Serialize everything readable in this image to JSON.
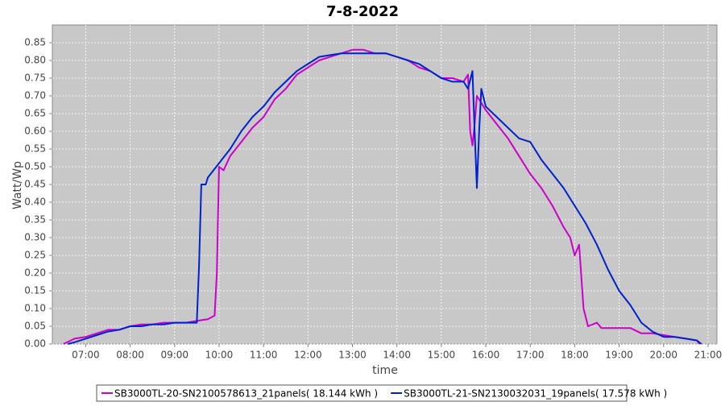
{
  "chart_data": {
    "type": "line",
    "title": "7-8-2022",
    "x_label": "time",
    "y_label": "Watt/Wp",
    "xlim": [
      6.25,
      21.2
    ],
    "ylim": [
      0,
      0.9
    ],
    "grid": true,
    "legend": "bottom",
    "xticks": [
      {
        "value": 7,
        "label": "07:00"
      },
      {
        "value": 8,
        "label": "08:00"
      },
      {
        "value": 9,
        "label": "09:00"
      },
      {
        "value": 10,
        "label": "10:00"
      },
      {
        "value": 11,
        "label": "11:00"
      },
      {
        "value": 12,
        "label": "12:00"
      },
      {
        "value": 13,
        "label": "13:00"
      },
      {
        "value": 14,
        "label": "14:00"
      },
      {
        "value": 15,
        "label": "15:00"
      },
      {
        "value": 16,
        "label": "16:00"
      },
      {
        "value": 17,
        "label": "17:00"
      },
      {
        "value": 18,
        "label": "18:00"
      },
      {
        "value": 19,
        "label": "19:00"
      },
      {
        "value": 20,
        "label": "20:00"
      },
      {
        "value": 21,
        "label": "21:00"
      }
    ],
    "yticks": [
      {
        "value": 0,
        "label": "0.00"
      },
      {
        "value": 0.05,
        "label": "0.05"
      },
      {
        "value": 0.1,
        "label": "0.10"
      },
      {
        "value": 0.15,
        "label": "0.15"
      },
      {
        "value": 0.2,
        "label": "0.20"
      },
      {
        "value": 0.25,
        "label": "0.25"
      },
      {
        "value": 0.3,
        "label": "0.30"
      },
      {
        "value": 0.35,
        "label": "0.35"
      },
      {
        "value": 0.4,
        "label": "0.40"
      },
      {
        "value": 0.45,
        "label": "0.45"
      },
      {
        "value": 0.5,
        "label": "0.50"
      },
      {
        "value": 0.55,
        "label": "0.55"
      },
      {
        "value": 0.6,
        "label": "0.60"
      },
      {
        "value": 0.65,
        "label": "0.65"
      },
      {
        "value": 0.7,
        "label": "0.70"
      },
      {
        "value": 0.75,
        "label": "0.75"
      },
      {
        "value": 0.8,
        "label": "0.80"
      },
      {
        "value": 0.85,
        "label": "0.85"
      }
    ],
    "series": [
      {
        "name": "SB3000TL-20-SN2100578613_21panels( 18.144 kWh )",
        "color": "#cc00cc",
        "x": [
          6.5,
          6.75,
          7.0,
          7.25,
          7.5,
          7.75,
          8.0,
          8.25,
          8.5,
          8.75,
          9.0,
          9.25,
          9.5,
          9.75,
          9.9,
          9.95,
          10.0,
          10.1,
          10.25,
          10.5,
          10.75,
          11.0,
          11.25,
          11.5,
          11.75,
          12.0,
          12.25,
          12.5,
          12.75,
          13.0,
          13.25,
          13.5,
          13.75,
          14.0,
          14.25,
          14.5,
          14.75,
          15.0,
          15.25,
          15.5,
          15.6,
          15.65,
          15.7,
          15.75,
          15.8,
          15.9,
          16.0,
          16.25,
          16.5,
          16.75,
          17.0,
          17.25,
          17.5,
          17.75,
          17.9,
          18.0,
          18.1,
          18.2,
          18.3,
          18.5,
          18.6,
          19.0,
          19.25,
          19.5,
          19.75,
          20.0,
          20.25,
          20.5,
          20.75,
          20.8
        ],
        "values": [
          0,
          0.015,
          0.02,
          0.03,
          0.04,
          0.04,
          0.05,
          0.055,
          0.055,
          0.06,
          0.06,
          0.06,
          0.065,
          0.07,
          0.08,
          0.2,
          0.5,
          0.49,
          0.53,
          0.57,
          0.61,
          0.64,
          0.69,
          0.72,
          0.76,
          0.78,
          0.8,
          0.81,
          0.82,
          0.83,
          0.83,
          0.82,
          0.82,
          0.81,
          0.8,
          0.78,
          0.77,
          0.75,
          0.75,
          0.74,
          0.76,
          0.6,
          0.56,
          0.62,
          0.7,
          0.68,
          0.66,
          0.62,
          0.58,
          0.53,
          0.48,
          0.44,
          0.39,
          0.33,
          0.3,
          0.25,
          0.28,
          0.1,
          0.05,
          0.06,
          0.045,
          0.045,
          0.045,
          0.03,
          0.03,
          0.025,
          0.02,
          0.015,
          0.01,
          0
        ]
      },
      {
        "name": "SB3000TL-21-SN2130032031_19panels( 17.578 kWh )",
        "color": "#0022cc",
        "x": [
          6.6,
          6.75,
          7.0,
          7.25,
          7.5,
          7.75,
          8.0,
          8.25,
          8.5,
          8.75,
          9.0,
          9.25,
          9.5,
          9.55,
          9.6,
          9.7,
          9.75,
          10.0,
          10.25,
          10.5,
          10.75,
          11.0,
          11.25,
          11.5,
          11.75,
          12.0,
          12.25,
          12.5,
          12.75,
          13.0,
          13.25,
          13.5,
          13.75,
          14.0,
          14.25,
          14.5,
          14.75,
          15.0,
          15.25,
          15.5,
          15.6,
          15.7,
          15.75,
          15.8,
          15.85,
          15.9,
          16.0,
          16.25,
          16.5,
          16.75,
          17.0,
          17.25,
          17.5,
          17.75,
          18.0,
          18.25,
          18.5,
          18.75,
          19.0,
          19.25,
          19.5,
          19.75,
          20.0,
          20.25,
          20.5,
          20.75,
          20.85
        ],
        "values": [
          0,
          0.005,
          0.015,
          0.025,
          0.035,
          0.04,
          0.05,
          0.05,
          0.055,
          0.055,
          0.06,
          0.06,
          0.06,
          0.22,
          0.45,
          0.45,
          0.47,
          0.51,
          0.55,
          0.6,
          0.64,
          0.67,
          0.71,
          0.74,
          0.77,
          0.79,
          0.81,
          0.815,
          0.82,
          0.82,
          0.82,
          0.82,
          0.82,
          0.81,
          0.8,
          0.79,
          0.77,
          0.75,
          0.74,
          0.74,
          0.72,
          0.77,
          0.6,
          0.44,
          0.6,
          0.72,
          0.67,
          0.64,
          0.61,
          0.58,
          0.57,
          0.52,
          0.48,
          0.44,
          0.39,
          0.34,
          0.28,
          0.21,
          0.15,
          0.11,
          0.06,
          0.035,
          0.02,
          0.02,
          0.015,
          0.01,
          0
        ]
      }
    ]
  }
}
